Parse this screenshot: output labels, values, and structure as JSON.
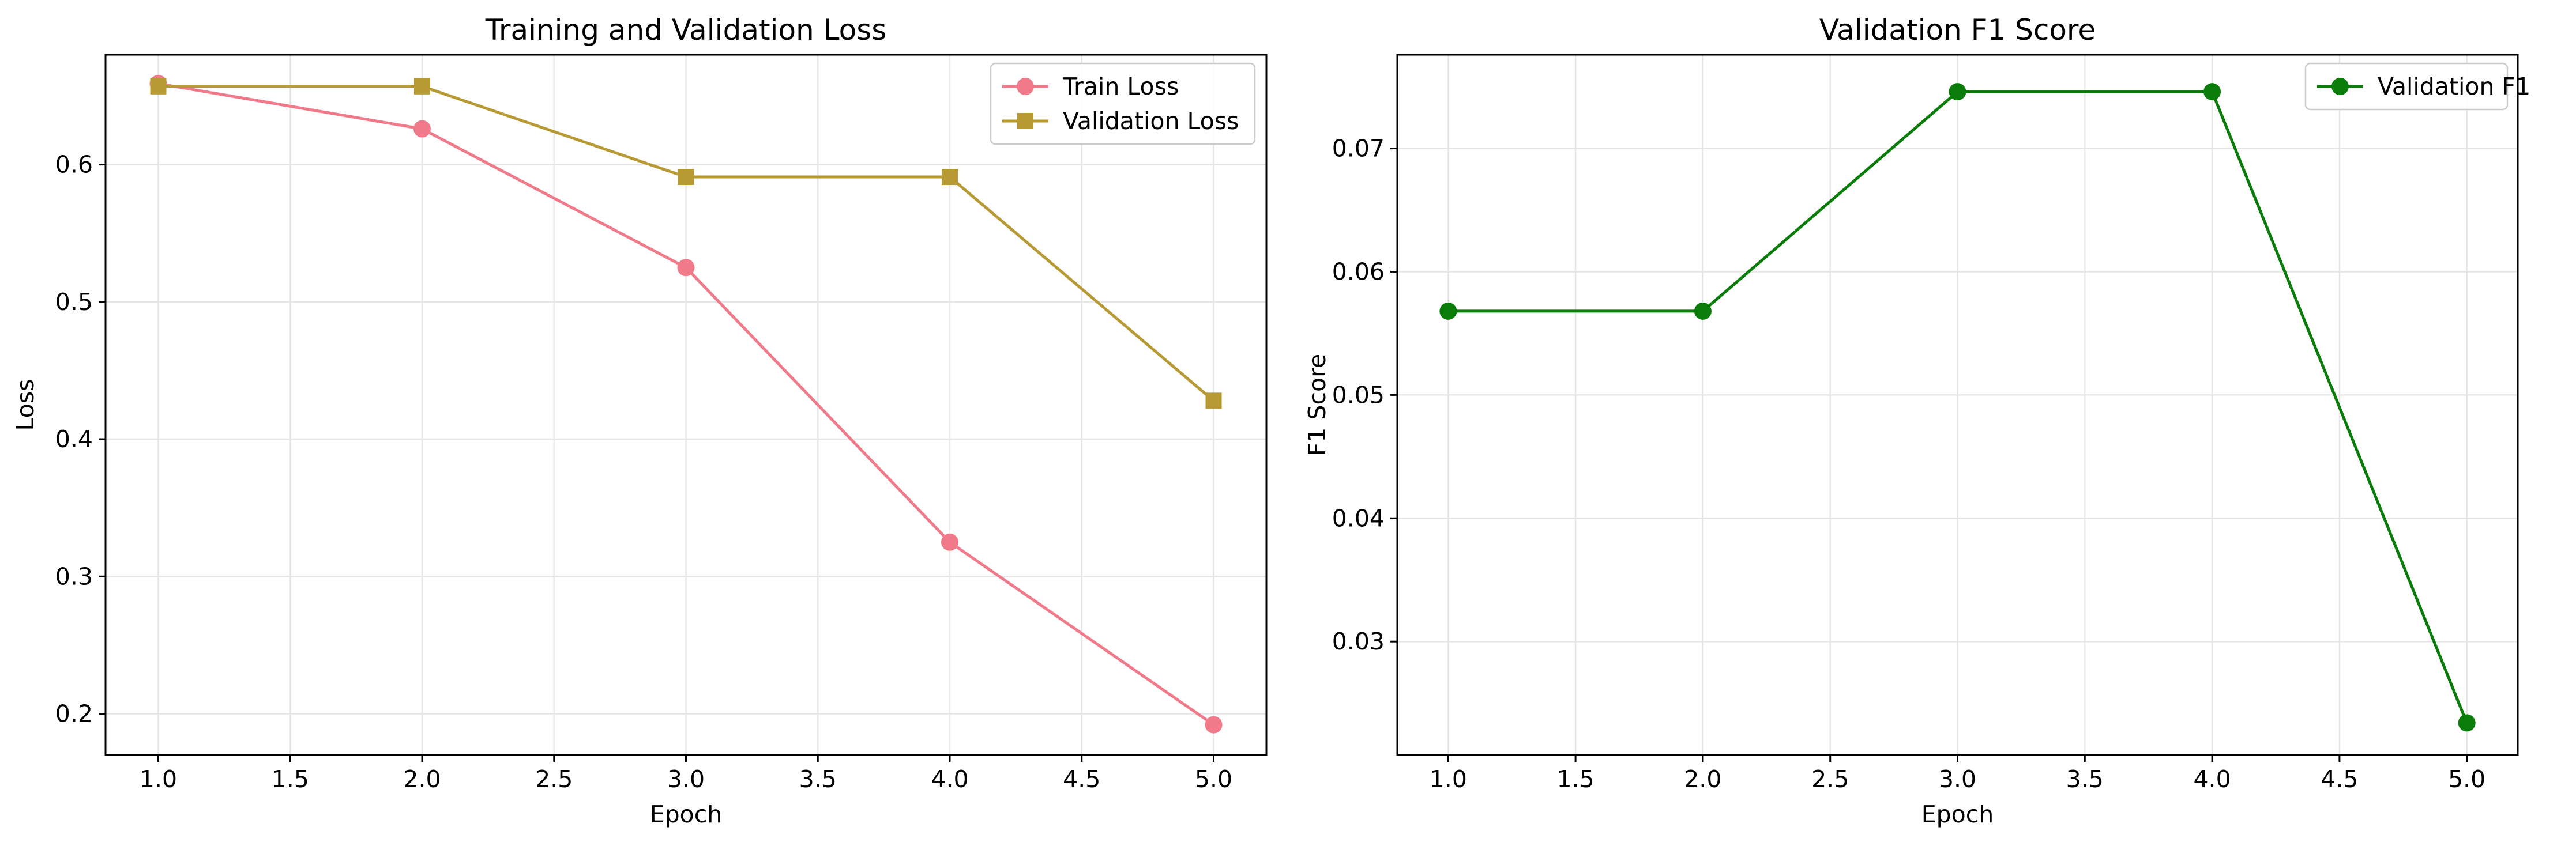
{
  "chart_data": [
    {
      "type": "line",
      "title": "Training and Validation Loss",
      "xlabel": "Epoch",
      "ylabel": "Loss",
      "xlim": [
        0.8,
        5.2
      ],
      "ylim": [
        0.17,
        0.68
      ],
      "x_ticks": [
        1.0,
        1.5,
        2.0,
        2.5,
        3.0,
        3.5,
        4.0,
        4.5,
        5.0
      ],
      "x_tick_labels": [
        "1.0",
        "1.5",
        "2.0",
        "2.5",
        "3.0",
        "3.5",
        "4.0",
        "4.5",
        "5.0"
      ],
      "y_ticks": [
        0.2,
        0.3,
        0.4,
        0.5,
        0.6
      ],
      "y_tick_labels": [
        "0.2",
        "0.3",
        "0.4",
        "0.5",
        "0.6"
      ],
      "grid": true,
      "legend_position": "top-right",
      "x": [
        1,
        2,
        3,
        4,
        5
      ],
      "series": [
        {
          "name": "Train Loss",
          "values": [
            0.659,
            0.626,
            0.525,
            0.325,
            0.192
          ],
          "color": "#f07a8a",
          "marker": "circle"
        },
        {
          "name": "Validation Loss",
          "values": [
            0.657,
            0.657,
            0.591,
            0.591,
            0.428
          ],
          "color": "#b89a34",
          "marker": "square"
        }
      ]
    },
    {
      "type": "line",
      "title": "Validation F1 Score",
      "xlabel": "Epoch",
      "ylabel": "F1 Score",
      "xlim": [
        0.8,
        5.2
      ],
      "ylim": [
        0.0208,
        0.0776
      ],
      "x_ticks": [
        1.0,
        1.5,
        2.0,
        2.5,
        3.0,
        3.5,
        4.0,
        4.5,
        5.0
      ],
      "x_tick_labels": [
        "1.0",
        "1.5",
        "2.0",
        "2.5",
        "3.0",
        "3.5",
        "4.0",
        "4.5",
        "5.0"
      ],
      "y_ticks": [
        0.03,
        0.04,
        0.05,
        0.06,
        0.07
      ],
      "y_tick_labels": [
        "0.03",
        "0.04",
        "0.05",
        "0.06",
        "0.07"
      ],
      "grid": true,
      "legend_position": "top-right",
      "x": [
        1,
        2,
        3,
        4,
        5
      ],
      "series": [
        {
          "name": "Validation F1",
          "values": [
            0.0568,
            0.0568,
            0.0746,
            0.0746,
            0.0234
          ],
          "color": "#0a7c0a",
          "marker": "circle"
        }
      ]
    }
  ]
}
